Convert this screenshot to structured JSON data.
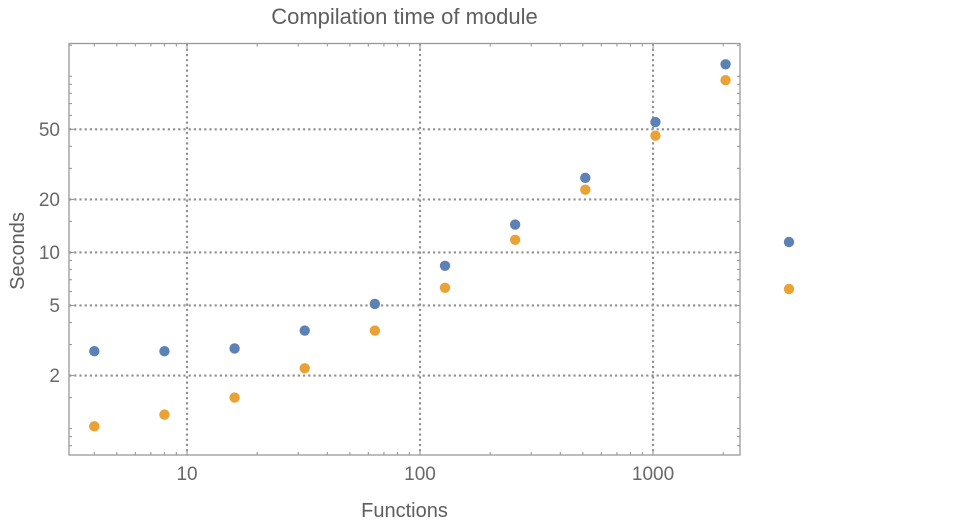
{
  "colors": {
    "series_blue": "#5e81b5",
    "series_orange": "#e9a233",
    "frame": "#999999",
    "grid": "#919191",
    "tick_label": "#686868",
    "axis_label": "#5e5e5e",
    "background": "#ffffff"
  },
  "chart_data": {
    "type": "scatter",
    "title": "Compilation time of module",
    "xlabel": "Functions",
    "ylabel": "Seconds",
    "xscale": "log",
    "yscale": "log",
    "xlim": [
      3.115,
      2362
    ],
    "ylim": [
      0.708,
      153.5
    ],
    "grid": "dotted lines at labeled major ticks, both axes",
    "x": [
      4,
      8,
      16,
      32,
      64,
      128,
      256,
      512,
      1024,
      2048
    ],
    "series": [
      {
        "name": "series-1-blue",
        "color": "#5e81b5",
        "values": [
          2.75,
          2.75,
          2.85,
          3.6,
          5.1,
          8.4,
          14.4,
          26.5,
          55,
          117
        ]
      },
      {
        "name": "series-2-orange",
        "color": "#e9a233",
        "values": [
          1.03,
          1.2,
          1.5,
          2.2,
          3.6,
          6.3,
          11.8,
          22.7,
          46,
          95
        ]
      }
    ],
    "x_ticks": {
      "major": [
        10,
        100,
        1000
      ],
      "major_labels": [
        "10",
        "100",
        "1000"
      ],
      "minor": [
        4,
        5,
        6,
        7,
        8,
        9,
        20,
        30,
        40,
        50,
        60,
        70,
        80,
        90,
        200,
        300,
        400,
        500,
        600,
        700,
        800,
        900,
        2000
      ]
    },
    "y_ticks": {
      "major": [
        2,
        5,
        10,
        20,
        50
      ],
      "major_labels": [
        "2",
        "5",
        "10",
        "20",
        "50"
      ],
      "minor": [
        0.8,
        0.9,
        1,
        1.5,
        3,
        4,
        6,
        7,
        8,
        9,
        15,
        30,
        40,
        60,
        70,
        80,
        90,
        100,
        150
      ]
    },
    "legend": {
      "position": "outside-right",
      "markers": [
        {
          "series": "series-1-blue",
          "color": "#5e81b5",
          "label": ""
        },
        {
          "series": "series-2-orange",
          "color": "#e9a233",
          "label": ""
        }
      ]
    }
  }
}
